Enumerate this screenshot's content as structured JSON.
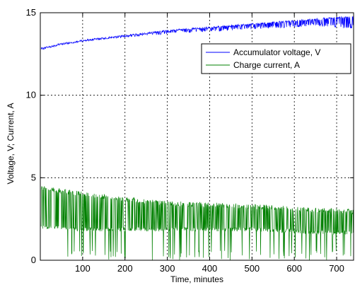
{
  "chart_data": {
    "type": "line",
    "title": "",
    "xlabel": "Time, minutes",
    "ylabel": "Voltage, V; Current, A",
    "xlim": [
      0,
      740
    ],
    "ylim": [
      0,
      15
    ],
    "xticks": [
      100,
      200,
      300,
      400,
      500,
      600,
      700
    ],
    "yticks": [
      0,
      5,
      10,
      15
    ],
    "grid": true,
    "legend_position": "top-right",
    "series": [
      {
        "name": "Accumulator voltage, V",
        "color": "#0000ff",
        "style": "noisy",
        "trend_x": [
          0,
          50,
          100,
          150,
          200,
          250,
          300,
          350,
          400,
          450,
          500,
          550,
          600,
          650,
          700,
          740
        ],
        "trend_y": [
          12.8,
          13.1,
          13.3,
          13.45,
          13.6,
          13.75,
          13.9,
          14.0,
          14.1,
          14.2,
          14.3,
          14.4,
          14.5,
          14.6,
          14.7,
          14.75
        ],
        "dip_y": [
          12.9,
          13.1,
          13.3,
          13.4,
          13.5,
          13.6,
          13.7,
          13.8,
          13.85,
          13.9,
          14.0,
          14.05,
          14.1,
          14.2,
          14.1,
          14.0
        ]
      },
      {
        "name": "Charge current, A",
        "color": "#008000",
        "style": "noisy",
        "trend_x": [
          0,
          50,
          100,
          150,
          200,
          250,
          300,
          350,
          400,
          450,
          500,
          550,
          600,
          650,
          700,
          740
        ],
        "trend_y": [
          4.4,
          4.2,
          4.0,
          3.85,
          3.7,
          3.55,
          3.45,
          3.4,
          3.35,
          3.3,
          3.25,
          3.2,
          3.1,
          3.05,
          3.0,
          2.95
        ],
        "dip_y": [
          2.1,
          2.1,
          2.0,
          2.0,
          2.0,
          2.0,
          2.0,
          2.0,
          2.0,
          2.0,
          2.0,
          1.9,
          1.9,
          1.8,
          1.8,
          1.8
        ]
      }
    ]
  }
}
